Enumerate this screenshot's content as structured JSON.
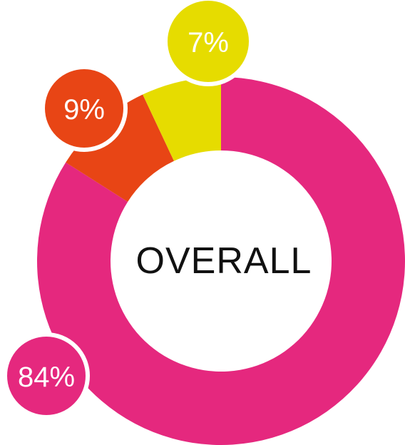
{
  "chart_data": {
    "type": "donut",
    "center_label": "OVERALL",
    "values": [
      84,
      9,
      7
    ],
    "value_labels": [
      "84%",
      "9%",
      "7%"
    ],
    "colors": [
      "#e5287e",
      "#e84515",
      "#e6dc00"
    ]
  }
}
